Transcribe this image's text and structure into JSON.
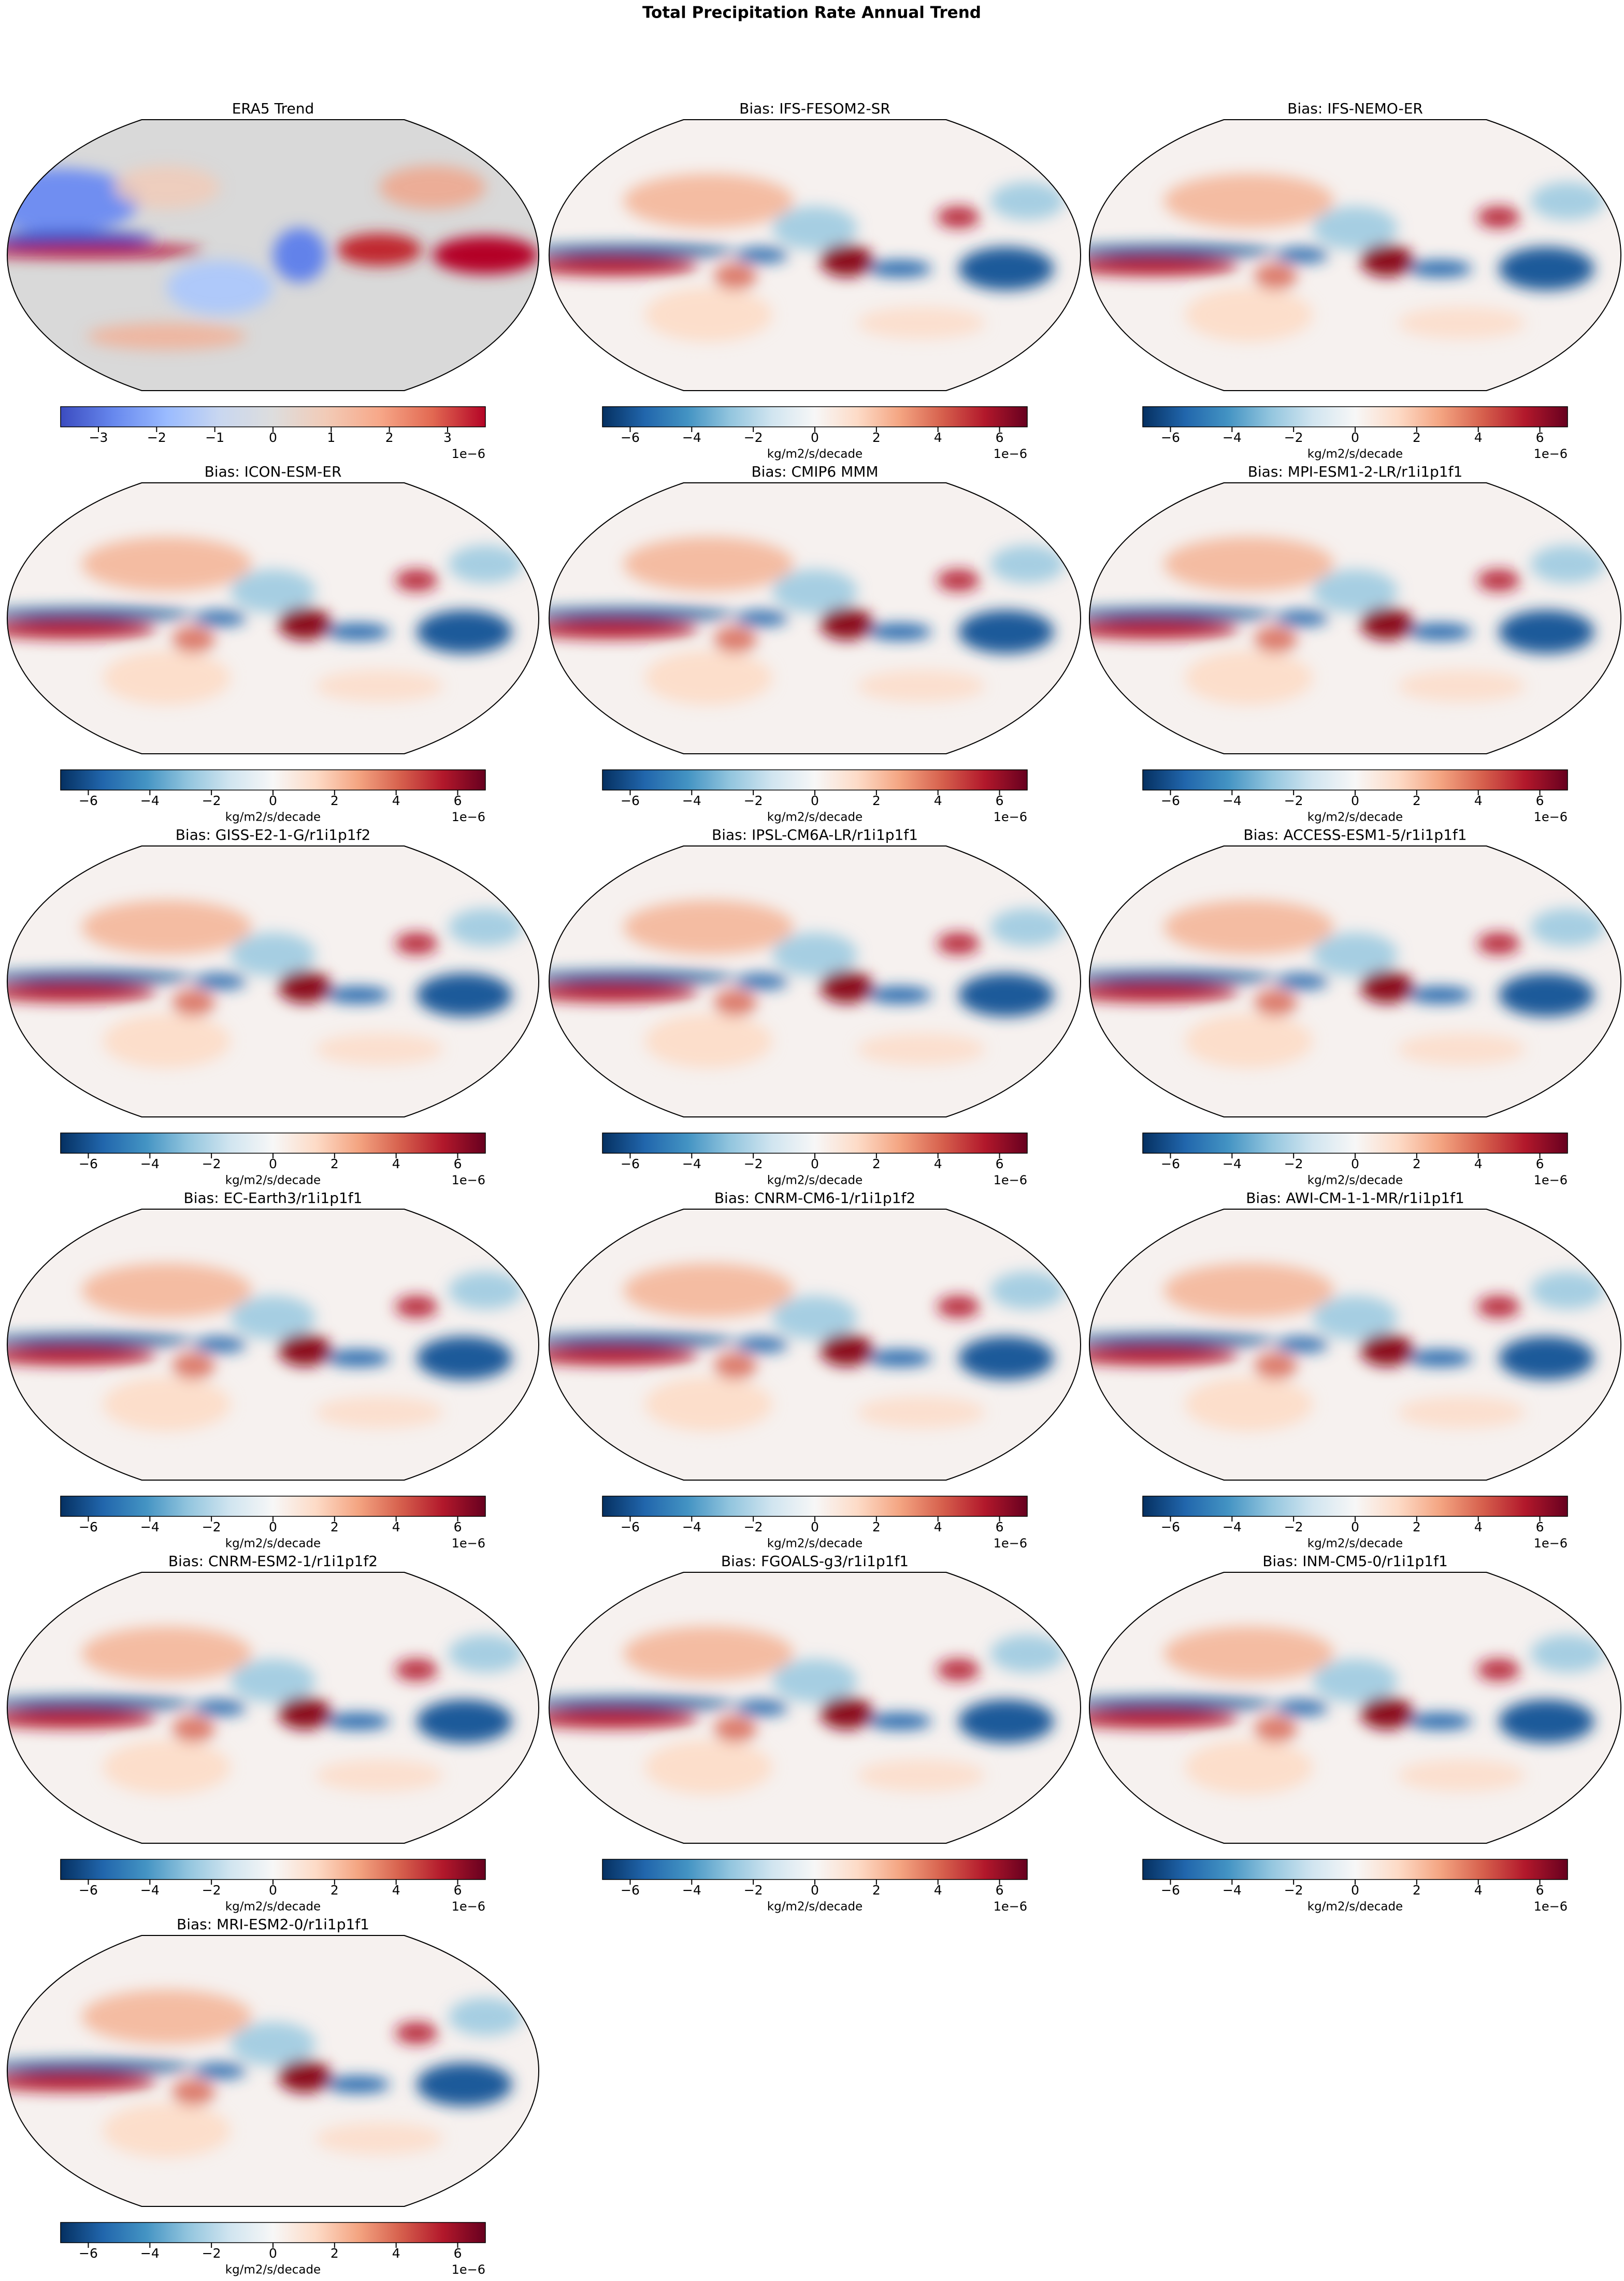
{
  "title": "Total Precipitation Rate Annual Trend",
  "panels": [
    {
      "title": "ERA5 Trend",
      "colorbar": {
        "colormap": "coolwarm",
        "clim": [
          -3.65,
          3.65
        ],
        "offset": "1e−6",
        "ticks": [
          {
            "value": -3,
            "label": "−3"
          },
          {
            "value": -2,
            "label": "−2"
          },
          {
            "value": -1,
            "label": "−1"
          },
          0,
          1,
          2,
          3
        ]
      }
    },
    {
      "title": "Bias: IFS-FESOM2-SR",
      "colorbar": {
        "colormap": "RdBu_r",
        "clim": [
          -6.9,
          6.9
        ],
        "label": "kg/m2/s/decade",
        "offset": "1e−6",
        "ticks": [
          {
            "value": -6,
            "label": "−6"
          },
          {
            "value": -4,
            "label": "−4"
          },
          {
            "value": -2,
            "label": "−2"
          },
          0,
          2,
          4,
          6
        ]
      }
    },
    {
      "title": "Bias: IFS-NEMO-ER",
      "colorbar": {
        "colormap": "RdBu_r",
        "clim": [
          -6.9,
          6.9
        ],
        "label": "kg/m2/s/decade",
        "offset": "1e−6",
        "ticks": [
          {
            "value": -6,
            "label": "−6"
          },
          {
            "value": -4,
            "label": "−4"
          },
          {
            "value": -2,
            "label": "−2"
          },
          0,
          2,
          4,
          6
        ]
      }
    },
    {
      "title": "Bias: ICON-ESM-ER",
      "colorbar": {
        "colormap": "RdBu_r",
        "clim": [
          -6.9,
          6.9
        ],
        "label": "kg/m2/s/decade",
        "offset": "1e−6",
        "ticks": [
          {
            "value": -6,
            "label": "−6"
          },
          {
            "value": -4,
            "label": "−4"
          },
          {
            "value": -2,
            "label": "−2"
          },
          0,
          2,
          4,
          6
        ]
      }
    },
    {
      "title": "Bias: CMIP6 MMM",
      "colorbar": {
        "colormap": "RdBu_r",
        "clim": [
          -6.9,
          6.9
        ],
        "label": "kg/m2/s/decade",
        "offset": "1e−6",
        "ticks": [
          {
            "value": -6,
            "label": "−6"
          },
          {
            "value": -4,
            "label": "−4"
          },
          {
            "value": -2,
            "label": "−2"
          },
          0,
          2,
          4,
          6
        ]
      }
    },
    {
      "title": "Bias: MPI-ESM1-2-LR/r1i1p1f1",
      "colorbar": {
        "colormap": "RdBu_r",
        "clim": [
          -6.9,
          6.9
        ],
        "label": "kg/m2/s/decade",
        "offset": "1e−6",
        "ticks": [
          {
            "value": -6,
            "label": "−6"
          },
          {
            "value": -4,
            "label": "−4"
          },
          {
            "value": -2,
            "label": "−2"
          },
          0,
          2,
          4,
          6
        ]
      }
    },
    {
      "title": "Bias: GISS-E2-1-G/r1i1p1f2",
      "colorbar": {
        "colormap": "RdBu_r",
        "clim": [
          -6.9,
          6.9
        ],
        "label": "kg/m2/s/decade",
        "offset": "1e−6",
        "ticks": [
          {
            "value": -6,
            "label": "−6"
          },
          {
            "value": -4,
            "label": "−4"
          },
          {
            "value": -2,
            "label": "−2"
          },
          0,
          2,
          4,
          6
        ]
      }
    },
    {
      "title": "Bias: IPSL-CM6A-LR/r1i1p1f1",
      "colorbar": {
        "colormap": "RdBu_r",
        "clim": [
          -6.9,
          6.9
        ],
        "label": "kg/m2/s/decade",
        "offset": "1e−6",
        "ticks": [
          {
            "value": -6,
            "label": "−6"
          },
          {
            "value": -4,
            "label": "−4"
          },
          {
            "value": -2,
            "label": "−2"
          },
          0,
          2,
          4,
          6
        ]
      }
    },
    {
      "title": "Bias: ACCESS-ESM1-5/r1i1p1f1",
      "colorbar": {
        "colormap": "RdBu_r",
        "clim": [
          -6.9,
          6.9
        ],
        "label": "kg/m2/s/decade",
        "offset": "1e−6",
        "ticks": [
          {
            "value": -6,
            "label": "−6"
          },
          {
            "value": -4,
            "label": "−4"
          },
          {
            "value": -2,
            "label": "−2"
          },
          0,
          2,
          4,
          6
        ]
      }
    },
    {
      "title": "Bias: EC-Earth3/r1i1p1f1",
      "colorbar": {
        "colormap": "RdBu_r",
        "clim": [
          -6.9,
          6.9
        ],
        "label": "kg/m2/s/decade",
        "offset": "1e−6",
        "ticks": [
          {
            "value": -6,
            "label": "−6"
          },
          {
            "value": -4,
            "label": "−4"
          },
          {
            "value": -2,
            "label": "−2"
          },
          0,
          2,
          4,
          6
        ]
      }
    },
    {
      "title": "Bias: CNRM-CM6-1/r1i1p1f2",
      "colorbar": {
        "colormap": "RdBu_r",
        "clim": [
          -6.9,
          6.9
        ],
        "label": "kg/m2/s/decade",
        "offset": "1e−6",
        "ticks": [
          {
            "value": -6,
            "label": "−6"
          },
          {
            "value": -4,
            "label": "−4"
          },
          {
            "value": -2,
            "label": "−2"
          },
          0,
          2,
          4,
          6
        ]
      }
    },
    {
      "title": "Bias: AWI-CM-1-1-MR/r1i1p1f1",
      "colorbar": {
        "colormap": "RdBu_r",
        "clim": [
          -6.9,
          6.9
        ],
        "label": "kg/m2/s/decade",
        "offset": "1e−6",
        "ticks": [
          {
            "value": -6,
            "label": "−6"
          },
          {
            "value": -4,
            "label": "−4"
          },
          {
            "value": -2,
            "label": "−2"
          },
          0,
          2,
          4,
          6
        ]
      }
    },
    {
      "title": "Bias: CNRM-ESM2-1/r1i1p1f2",
      "colorbar": {
        "colormap": "RdBu_r",
        "clim": [
          -6.9,
          6.9
        ],
        "label": "kg/m2/s/decade",
        "offset": "1e−6",
        "ticks": [
          {
            "value": -6,
            "label": "−6"
          },
          {
            "value": -4,
            "label": "−4"
          },
          {
            "value": -2,
            "label": "−2"
          },
          0,
          2,
          4,
          6
        ]
      }
    },
    {
      "title": "Bias: FGOALS-g3/r1i1p1f1",
      "colorbar": {
        "colormap": "RdBu_r",
        "clim": [
          -6.9,
          6.9
        ],
        "label": "kg/m2/s/decade",
        "offset": "1e−6",
        "ticks": [
          {
            "value": -6,
            "label": "−6"
          },
          {
            "value": -4,
            "label": "−4"
          },
          {
            "value": -2,
            "label": "−2"
          },
          0,
          2,
          4,
          6
        ]
      }
    },
    {
      "title": "Bias: INM-CM5-0/r1i1p1f1",
      "colorbar": {
        "colormap": "RdBu_r",
        "clim": [
          -6.9,
          6.9
        ],
        "label": "kg/m2/s/decade",
        "offset": "1e−6",
        "ticks": [
          {
            "value": -6,
            "label": "−6"
          },
          {
            "value": -4,
            "label": "−4"
          },
          {
            "value": -2,
            "label": "−2"
          },
          0,
          2,
          4,
          6
        ]
      }
    },
    {
      "title": "Bias: MRI-ESM2-0/r1i1p1f1",
      "colorbar": {
        "colormap": "RdBu_r",
        "clim": [
          -6.9,
          6.9
        ],
        "label": "kg/m2/s/decade",
        "offset": "1e−6",
        "ticks": [
          {
            "value": -6,
            "label": "−6"
          },
          {
            "value": -4,
            "label": "−4"
          },
          {
            "value": -2,
            "label": "−2"
          },
          0,
          2,
          4,
          6
        ]
      }
    }
  ]
}
